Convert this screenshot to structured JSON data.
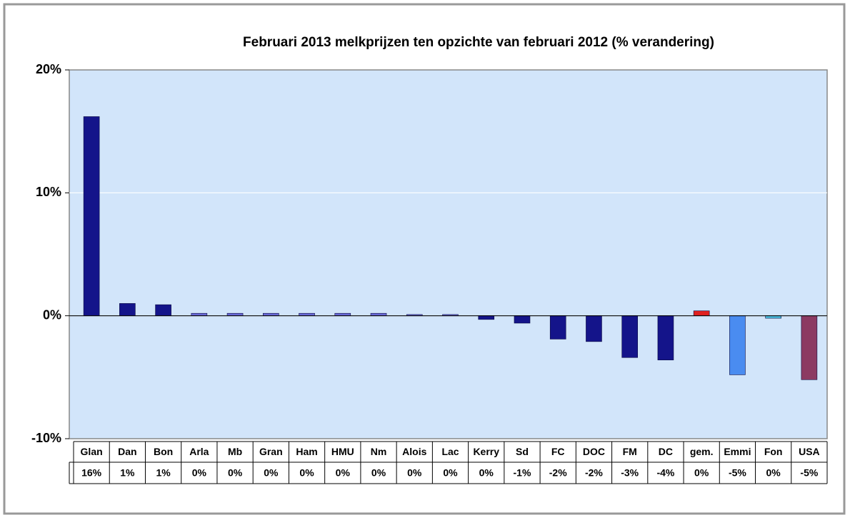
{
  "chart_data": {
    "type": "bar",
    "title": "Februari 2013 melkprijzen ten opzichte van februari 2012 (% verandering)",
    "categories": [
      "Glan",
      "Dan",
      "Bon",
      "Arla",
      "Mb",
      "Gran",
      "Ham",
      "HMU",
      "Nm",
      "Alois",
      "Lac",
      "Kerry",
      "Sd",
      "FC",
      "DOC",
      "FM",
      "DC",
      "gem.",
      "Emmi",
      "Fon",
      "USA"
    ],
    "values": [
      16.2,
      1.0,
      0.9,
      0.2,
      0.2,
      0.2,
      0.2,
      0.2,
      0.2,
      0.1,
      0.1,
      -0.3,
      -0.6,
      -1.9,
      -2.1,
      -3.4,
      -3.6,
      0.4,
      -4.8,
      -0.2,
      -5.2
    ],
    "value_labels": [
      "16%",
      "1%",
      "1%",
      "0%",
      "0%",
      "0%",
      "0%",
      "0%",
      "0%",
      "0%",
      "0%",
      "0%",
      "-1%",
      "-2%",
      "-2%",
      "-3%",
      "-4%",
      "0%",
      "-5%",
      "0%",
      "-5%"
    ],
    "colors": [
      "#14148a",
      "#14148a",
      "#14148a",
      "#6a6ad8",
      "#6a6ad8",
      "#6a6ad8",
      "#6a6ad8",
      "#6a6ad8",
      "#6a6ad8",
      "#6a6ad8",
      "#6a6ad8",
      "#14148a",
      "#14148a",
      "#14148a",
      "#14148a",
      "#14148a",
      "#14148a",
      "#e02020",
      "#4a8cf0",
      "#4cc0e0",
      "#8c3a62"
    ],
    "ylim": [
      -10,
      20
    ],
    "yticks": [
      {
        "value": -10,
        "label": "-10%"
      },
      {
        "value": 0,
        "label": "0%"
      },
      {
        "value": 10,
        "label": "10%"
      },
      {
        "value": 20,
        "label": "20%"
      }
    ],
    "grid": true
  }
}
